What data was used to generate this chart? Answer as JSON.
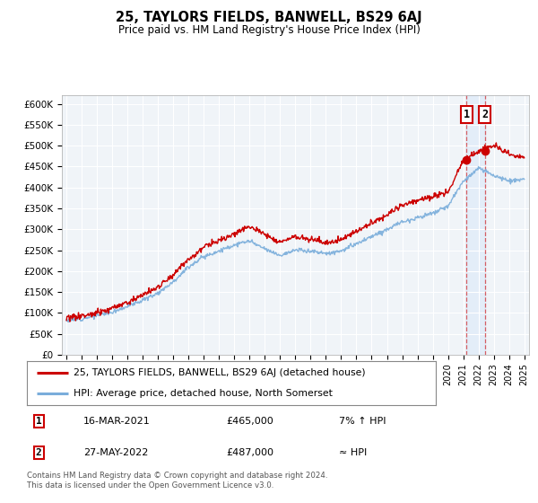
{
  "title": "25, TAYLORS FIELDS, BANWELL, BS29 6AJ",
  "subtitle": "Price paid vs. HM Land Registry's House Price Index (HPI)",
  "legend_line1": "25, TAYLORS FIELDS, BANWELL, BS29 6AJ (detached house)",
  "legend_line2": "HPI: Average price, detached house, North Somerset",
  "annotation1_label": "1",
  "annotation1_date": "16-MAR-2021",
  "annotation1_price": "£465,000",
  "annotation1_relation": "7% ↑ HPI",
  "annotation2_label": "2",
  "annotation2_date": "27-MAY-2022",
  "annotation2_price": "£487,000",
  "annotation2_relation": "≈ HPI",
  "footer": "Contains HM Land Registry data © Crown copyright and database right 2024.\nThis data is licensed under the Open Government Licence v3.0.",
  "red_color": "#cc0000",
  "blue_color": "#7aaddb",
  "marker1_x": 2021.21,
  "marker2_x": 2022.41,
  "marker1_y": 465000,
  "marker2_y": 487000,
  "ylim": [
    0,
    620000
  ],
  "xlim_left": 1994.7,
  "xlim_right": 2025.3
}
